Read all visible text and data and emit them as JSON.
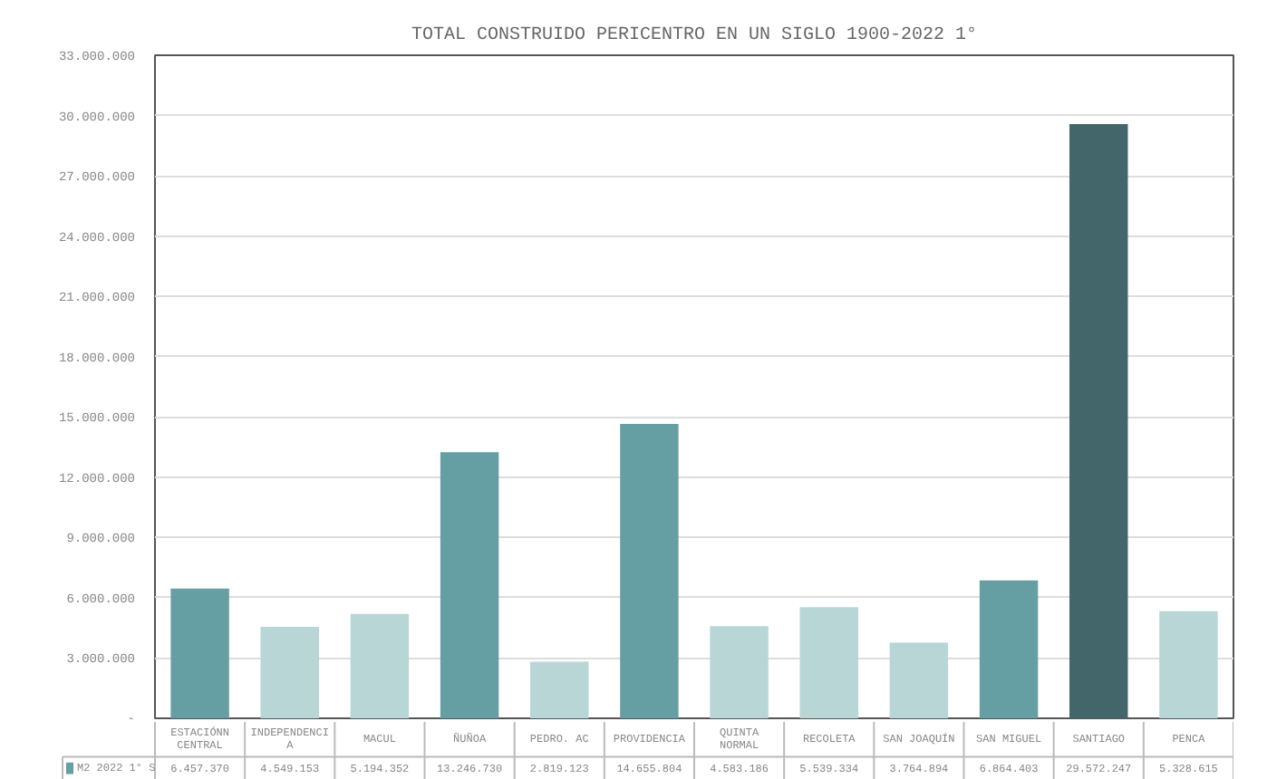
{
  "chart_data": {
    "type": "bar",
    "title": "TOTAL CONSTRUIDO PERICENTRO EN UN SIGLO 1900-2022 1°",
    "categories": [
      "ESTACIÓNN CENTRAL",
      "INDEPENDENCIA",
      "MACUL",
      "ÑUÑOA",
      "PEDRO. AC",
      "PROVIDENCIA",
      "QUINTA NORMAL",
      "RECOLETA",
      "SAN JOAQUÍN",
      "SAN MIGUEL",
      "SANTIAGO",
      "PENCA"
    ],
    "series": [
      {
        "name": "M2 2022 1° S",
        "color": "#669fa3",
        "colors": [
          "#669fa3",
          "#b8d6d6",
          "#b8d6d6",
          "#669fa3",
          "#b8d6d6",
          "#669fa3",
          "#b8d6d6",
          "#b8d6d6",
          "#b8d6d6",
          "#669fa3",
          "#42666a",
          "#b8d6d6"
        ],
        "values": [
          6457370,
          4549153,
          5194352,
          13246730,
          2819123,
          14655804,
          4583186,
          5539334,
          3764894,
          6864403,
          29572247,
          5328615
        ],
        "value_labels": [
          "6.457.370",
          "4.549.153",
          "5.194.352",
          "13.246.730",
          "2.819.123",
          "14.655.804",
          "4.583.186",
          "5.539.334",
          "3.764.894",
          "6.864.403",
          "29.572.247",
          "5.328.615"
        ]
      }
    ],
    "ylim": [
      0,
      33000000
    ],
    "yticks": [
      {
        "value": 0,
        "label": "-"
      },
      {
        "value": 3000000,
        "label": "3.000.000"
      },
      {
        "value": 6000000,
        "label": "6.000.000"
      },
      {
        "value": 9000000,
        "label": "9.000.000"
      },
      {
        "value": 12000000,
        "label": "12.000.000"
      },
      {
        "value": 15000000,
        "label": "15.000.000"
      },
      {
        "value": 18000000,
        "label": "18.000.000"
      },
      {
        "value": 21000000,
        "label": "21.000.000"
      },
      {
        "value": 24000000,
        "label": "24.000.000"
      },
      {
        "value": 27000000,
        "label": "27.000.000"
      },
      {
        "value": 30000000,
        "label": "30.000.000"
      },
      {
        "value": 33000000,
        "label": "33.000.000"
      }
    ],
    "grid": "y",
    "legend": "bottom"
  }
}
